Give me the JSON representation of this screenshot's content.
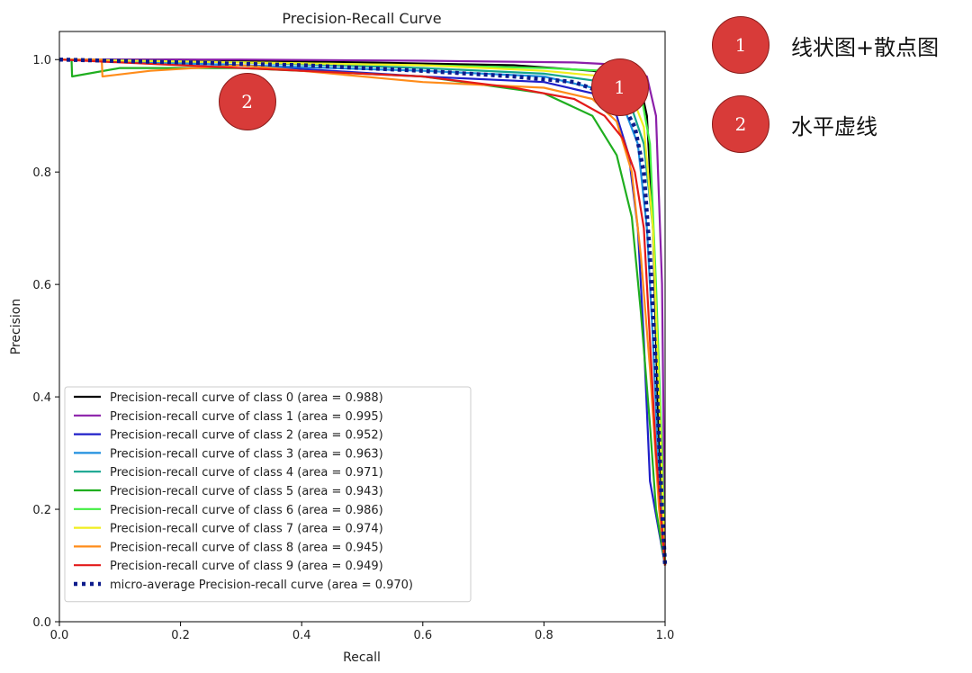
{
  "chart_data": {
    "type": "line",
    "title": "Precision-Recall Curve",
    "xlabel": "Recall",
    "ylabel": "Precision",
    "xlim": [
      0.0,
      1.0
    ],
    "ylim": [
      0.0,
      1.05
    ],
    "xticks": [
      "0.0",
      "0.2",
      "0.4",
      "0.6",
      "0.8",
      "1.0"
    ],
    "yticks": [
      "0.0",
      "0.2",
      "0.4",
      "0.6",
      "0.8",
      "1.0"
    ],
    "legend_position": "lower-left",
    "series": [
      {
        "name": "Precision-recall curve of class 0 (area = 0.988)",
        "color": "#000000",
        "dash": "solid",
        "x": [
          0.0,
          0.2,
          0.5,
          0.75,
          0.88,
          0.94,
          0.96,
          0.97,
          0.98,
          0.99,
          1.0
        ],
        "y": [
          1.0,
          1.0,
          0.995,
          0.99,
          0.98,
          0.97,
          0.95,
          0.9,
          0.7,
          0.3,
          0.1
        ]
      },
      {
        "name": "Precision-recall curve of class 1 (area = 0.995)",
        "color": "#8b1fa9",
        "dash": "solid",
        "x": [
          0.0,
          0.3,
          0.6,
          0.85,
          0.94,
          0.97,
          0.985,
          0.995,
          1.0
        ],
        "y": [
          1.0,
          1.0,
          0.998,
          0.995,
          0.99,
          0.97,
          0.9,
          0.6,
          0.1
        ]
      },
      {
        "name": "Precision-recall curve of class 2 (area = 0.952)",
        "color": "#1f1fc9",
        "dash": "solid",
        "x": [
          0.0,
          0.3,
          0.6,
          0.8,
          0.88,
          0.92,
          0.94,
          0.955,
          0.965,
          0.975,
          1.0
        ],
        "y": [
          1.0,
          0.99,
          0.97,
          0.96,
          0.94,
          0.9,
          0.83,
          0.7,
          0.5,
          0.25,
          0.1
        ]
      },
      {
        "name": "Precision-recall curve of class 3 (area = 0.963)",
        "color": "#1f8fdf",
        "dash": "solid",
        "x": [
          0.0,
          0.3,
          0.6,
          0.8,
          0.88,
          0.93,
          0.955,
          0.97,
          0.98,
          0.99,
          1.0
        ],
        "y": [
          1.0,
          0.99,
          0.98,
          0.97,
          0.95,
          0.92,
          0.85,
          0.7,
          0.5,
          0.25,
          0.1
        ]
      },
      {
        "name": "Precision-recall curve of class 4 (area = 0.971)",
        "color": "#15a58f",
        "dash": "solid",
        "x": [
          0.0,
          0.3,
          0.6,
          0.8,
          0.9,
          0.94,
          0.965,
          0.98,
          0.99,
          1.0
        ],
        "y": [
          1.0,
          0.995,
          0.985,
          0.975,
          0.96,
          0.93,
          0.85,
          0.7,
          0.4,
          0.1
        ]
      },
      {
        "name": "Precision-recall curve of class 5 (area = 0.943)",
        "color": "#1fae1f",
        "dash": "solid",
        "x": [
          0.0,
          0.02,
          0.021,
          0.1,
          0.3,
          0.6,
          0.8,
          0.88,
          0.92,
          0.945,
          0.96,
          0.975,
          0.985,
          1.0
        ],
        "y": [
          1.0,
          1.0,
          0.97,
          0.985,
          0.985,
          0.97,
          0.94,
          0.9,
          0.83,
          0.72,
          0.55,
          0.35,
          0.2,
          0.1
        ]
      },
      {
        "name": "Precision-recall curve of class 6 (area = 0.986)",
        "color": "#40ee40",
        "dash": "solid",
        "x": [
          0.0,
          0.3,
          0.6,
          0.8,
          0.9,
          0.94,
          0.96,
          0.975,
          0.985,
          0.995,
          1.0
        ],
        "y": [
          1.0,
          0.995,
          0.99,
          0.985,
          0.98,
          0.97,
          0.94,
          0.85,
          0.6,
          0.3,
          0.1
        ]
      },
      {
        "name": "Precision-recall curve of class 7 (area = 0.974)",
        "color": "#f0ee1f",
        "dash": "solid",
        "x": [
          0.0,
          0.3,
          0.6,
          0.8,
          0.9,
          0.94,
          0.965,
          0.98,
          0.99,
          1.0
        ],
        "y": [
          1.0,
          0.995,
          0.99,
          0.98,
          0.97,
          0.95,
          0.88,
          0.7,
          0.4,
          0.1
        ]
      },
      {
        "name": "Precision-recall curve of class 8 (area = 0.945)",
        "color": "#ff8c1a",
        "dash": "solid",
        "x": [
          0.0,
          0.07,
          0.071,
          0.15,
          0.3,
          0.6,
          0.8,
          0.88,
          0.92,
          0.945,
          0.96,
          0.975,
          0.99,
          1.0
        ],
        "y": [
          1.0,
          1.0,
          0.97,
          0.98,
          0.99,
          0.96,
          0.95,
          0.93,
          0.89,
          0.8,
          0.65,
          0.45,
          0.2,
          0.1
        ]
      },
      {
        "name": "Precision-recall curve of class 9 (area = 0.949)",
        "color": "#e31a1a",
        "dash": "solid",
        "x": [
          0.0,
          0.2,
          0.4,
          0.6,
          0.75,
          0.85,
          0.9,
          0.93,
          0.95,
          0.965,
          0.975,
          0.985,
          1.0
        ],
        "y": [
          1.0,
          0.99,
          0.98,
          0.97,
          0.95,
          0.93,
          0.9,
          0.86,
          0.8,
          0.7,
          0.5,
          0.3,
          0.1
        ]
      },
      {
        "name": "micro-average Precision-recall curve (area = 0.970)",
        "color": "#0d1b8c",
        "dash": "dotted",
        "x": [
          0.0,
          0.2,
          0.4,
          0.6,
          0.75,
          0.85,
          0.9,
          0.93,
          0.95,
          0.965,
          0.975,
          0.985,
          0.995,
          1.0
        ],
        "y": [
          1.0,
          0.995,
          0.99,
          0.98,
          0.97,
          0.96,
          0.94,
          0.92,
          0.88,
          0.8,
          0.65,
          0.45,
          0.2,
          0.1
        ]
      }
    ],
    "chart_badges": [
      {
        "label": "1",
        "recall": 0.925,
        "precision": 0.95
      },
      {
        "label": "2",
        "recall": 0.31,
        "precision": 0.925
      }
    ]
  },
  "annotations": [
    {
      "badge": "1",
      "text": "线状图+散点图"
    },
    {
      "badge": "2",
      "text": "水平虚线"
    }
  ]
}
